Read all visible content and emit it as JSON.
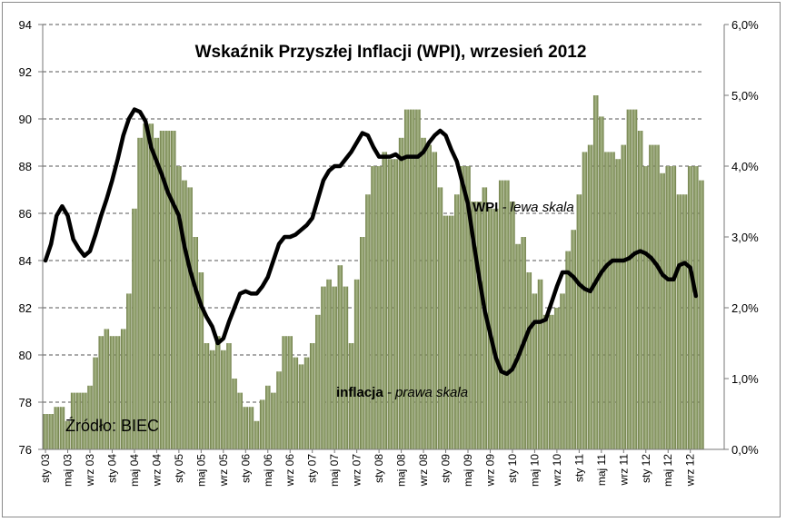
{
  "chart_data": {
    "type": "bar+line",
    "title": "Wskaźnik  Przyszłej Inflacji (WPI), wrzesień 2012",
    "source_text": "Źródło: BIEC",
    "annotations": {
      "wpi": {
        "bold": "WPI",
        "rest": " - lewa skala"
      },
      "inflation": {
        "bold": "inflacja",
        "rest": " - prawa skala"
      }
    },
    "x_tick_labels": [
      "sty 03",
      "maj 03",
      "wrz 03",
      "sty 04",
      "maj 04",
      "wrz 04",
      "sty 05",
      "maj 05",
      "wrz 05",
      "sty 06",
      "maj 06",
      "wrz 06",
      "sty 07",
      "maj 07",
      "wrz 07",
      "sty 08",
      "maj 08",
      "wrz 08",
      "sty 09",
      "maj 09",
      "wrz 09",
      "sty 10",
      "maj 10",
      "wrz 10",
      "sty 11",
      "maj 11",
      "wrz 11",
      "sty 12",
      "maj 12",
      "wrz 12"
    ],
    "y_left": {
      "min": 76,
      "max": 94,
      "step": 2,
      "ticks": [
        "76",
        "78",
        "80",
        "82",
        "84",
        "86",
        "88",
        "90",
        "92",
        "94"
      ]
    },
    "y_right": {
      "min": 0,
      "max": 6,
      "step": 1,
      "ticks": [
        "0,0%",
        "1,0%",
        "2,0%",
        "3,0%",
        "4,0%",
        "5,0%",
        "6,0%"
      ]
    },
    "gridlines": "horizontal dashed",
    "colors": {
      "bar": "#7d8c55",
      "bar_light": "#a8b68a",
      "line": "#000000"
    },
    "series": [
      {
        "name": "inflacja",
        "axis": "right",
        "start": "2003-01",
        "values": [
          0.5,
          0.5,
          0.6,
          0.6,
          0.4,
          0.8,
          0.8,
          0.8,
          0.9,
          1.3,
          1.6,
          1.7,
          1.6,
          1.6,
          1.7,
          2.2,
          3.4,
          4.4,
          4.6,
          4.6,
          4.4,
          4.5,
          4.5,
          4.5,
          4.0,
          3.8,
          3.7,
          3.0,
          2.5,
          1.5,
          1.4,
          1.6,
          1.4,
          1.5,
          1.0,
          0.8,
          0.6,
          0.6,
          0.4,
          0.7,
          0.9,
          0.8,
          1.1,
          1.6,
          1.6,
          1.3,
          1.2,
          1.3,
          1.5,
          1.9,
          2.3,
          2.4,
          2.3,
          2.6,
          2.3,
          1.5,
          2.4,
          3.0,
          3.6,
          4.0,
          4.0,
          4.2,
          4.1,
          4.1,
          4.4,
          4.8,
          4.8,
          4.8,
          4.4,
          4.3,
          4.2,
          3.7,
          3.3,
          3.3,
          3.6,
          4.0,
          4.0,
          3.5,
          3.5,
          3.7,
          3.4,
          3.4,
          3.8,
          3.8,
          3.5,
          2.9,
          3.0,
          2.5,
          2.2,
          2.4,
          1.9,
          1.9,
          2.0,
          2.2,
          2.8,
          3.1,
          3.6,
          4.2,
          4.3,
          5.0,
          4.7,
          4.2,
          4.2,
          4.1,
          4.3,
          4.8,
          4.8,
          4.5,
          4.0,
          4.3,
          4.3,
          3.9,
          4.0,
          4.0,
          3.6,
          3.6,
          4.0,
          4.0,
          3.8
        ]
      },
      {
        "name": "WPI",
        "axis": "left",
        "start": "2003-01",
        "values": [
          84.0,
          84.7,
          85.9,
          86.3,
          85.9,
          84.9,
          84.5,
          84.2,
          84.4,
          85.1,
          85.9,
          86.6,
          87.4,
          88.3,
          89.3,
          90.0,
          90.4,
          90.3,
          89.9,
          88.8,
          88.2,
          87.6,
          86.9,
          86.4,
          85.9,
          84.6,
          83.6,
          82.8,
          82.1,
          81.6,
          81.2,
          80.5,
          80.7,
          81.4,
          82.0,
          82.6,
          82.7,
          82.6,
          82.6,
          82.9,
          83.3,
          84.0,
          84.7,
          85.0,
          85.0,
          85.1,
          85.3,
          85.5,
          85.8,
          86.6,
          87.4,
          87.8,
          88.0,
          88.0,
          88.3,
          88.6,
          89.0,
          89.4,
          89.3,
          88.8,
          88.4,
          88.4,
          88.4,
          88.5,
          88.3,
          88.4,
          88.4,
          88.4,
          88.6,
          89.0,
          89.3,
          89.5,
          89.3,
          88.7,
          88.2,
          87.3,
          86.4,
          84.8,
          83.3,
          81.9,
          80.9,
          79.9,
          79.3,
          79.2,
          79.4,
          79.9,
          80.5,
          81.1,
          81.4,
          81.4,
          81.5,
          82.2,
          82.9,
          83.5,
          83.5,
          83.3,
          83.0,
          82.8,
          82.7,
          83.1,
          83.5,
          83.8,
          84.0,
          84.0,
          84.0,
          84.1,
          84.3,
          84.4,
          84.3,
          84.1,
          83.8,
          83.4,
          83.2,
          83.2,
          83.8,
          83.9,
          83.7,
          82.5
        ]
      }
    ]
  }
}
